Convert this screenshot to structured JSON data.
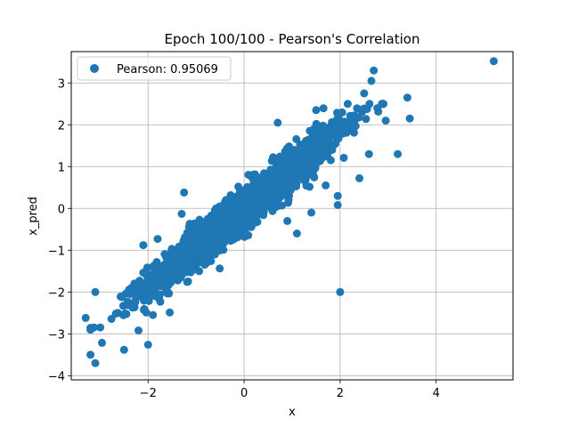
{
  "chart_data": {
    "type": "scatter",
    "title": "Epoch 100/100 - Pearson's Correlation",
    "xlabel": "x",
    "ylabel": "x_pred",
    "xlim": [
      -3.6,
      5.6
    ],
    "ylim": [
      -4.1,
      3.75
    ],
    "xticks": [
      -2,
      0,
      2,
      4
    ],
    "yticks": [
      -4,
      -3,
      -2,
      -1,
      0,
      1,
      2,
      3
    ],
    "grid": true,
    "legend_position": "upper-left",
    "color": "#1f77b4",
    "series": [
      {
        "name": "Pearson: 0.95069",
        "trend": {
          "slope": 0.93,
          "noise_sd": 0.25,
          "x_sd": 1.0,
          "count": 2000
        },
        "points": [
          [
            5.2,
            3.52
          ],
          [
            -3.1,
            -3.7
          ],
          [
            -3.3,
            -2.62
          ],
          [
            -3.1,
            -2.0
          ],
          [
            -2.5,
            -3.38
          ],
          [
            -2.0,
            -3.26
          ],
          [
            -2.1,
            -0.88
          ],
          [
            -1.8,
            -0.73
          ],
          [
            3.4,
            2.65
          ],
          [
            3.45,
            2.15
          ],
          [
            3.2,
            1.3
          ],
          [
            2.7,
            3.3
          ],
          [
            2.65,
            3.05
          ],
          [
            2.5,
            2.75
          ],
          [
            2.4,
            0.72
          ],
          [
            1.95,
            0.3
          ],
          [
            1.95,
            0.08
          ],
          [
            1.4,
            -0.1
          ],
          [
            0.9,
            -0.3
          ],
          [
            1.1,
            -0.6
          ],
          [
            -1.3,
            -0.13
          ],
          [
            -1.25,
            0.38
          ],
          [
            2.0,
            -2.0
          ],
          [
            1.7,
            0.55
          ],
          [
            2.6,
            1.3
          ],
          [
            -2.2,
            -2.92
          ],
          [
            -1.9,
            -2.55
          ],
          [
            -3.2,
            -2.9
          ],
          [
            0.7,
            2.05
          ],
          [
            1.5,
            2.35
          ],
          [
            2.95,
            2.1
          ]
        ]
      }
    ]
  }
}
